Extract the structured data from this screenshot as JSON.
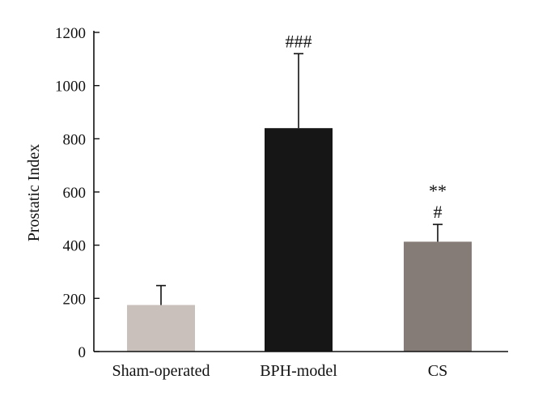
{
  "chart_data": {
    "type": "bar",
    "title": "",
    "xlabel": "",
    "ylabel": "Prostatic Index",
    "ylim": [
      0,
      1200
    ],
    "yticks": [
      0,
      200,
      400,
      600,
      800,
      1000,
      1200
    ],
    "categories": [
      "Sham-operated",
      "BPH-model",
      "CS"
    ],
    "values": [
      175,
      840,
      413
    ],
    "error_upper": [
      248,
      1120,
      478
    ],
    "annotations": [
      {
        "category": "BPH-model",
        "lines": [
          "###"
        ]
      },
      {
        "category": "CS",
        "lines": [
          "**",
          "#"
        ]
      }
    ],
    "bar_colors": [
      "#c9bfbb",
      "#161616",
      "#857b77"
    ],
    "grid": false,
    "legend": "none"
  }
}
